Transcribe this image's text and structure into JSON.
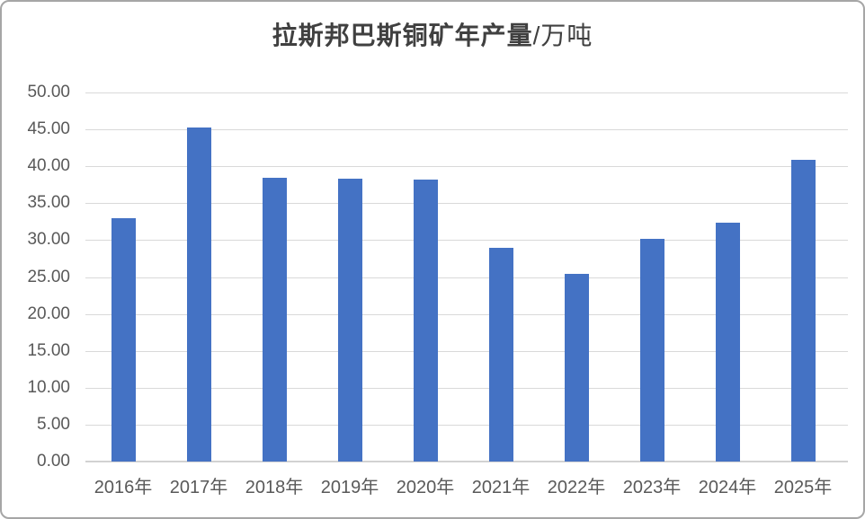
{
  "chart": {
    "title_main": "拉斯邦巴斯铜矿年产量",
    "title_suffix": "/万吨",
    "colors": {
      "bar": "#4472C4",
      "gridline": "#D9D9D9",
      "axis_line": "#D2D2D2",
      "tick_label": "#595959",
      "title": "#404040",
      "frame_border": "#A6A6A6",
      "background": "#FFFFFF"
    }
  },
  "chart_data": {
    "type": "bar",
    "title": "拉斯邦巴斯铜矿年产量/万吨",
    "categories": [
      "2016年",
      "2017年",
      "2018年",
      "2019年",
      "2020年",
      "2021年",
      "2022年",
      "2023年",
      "2024年",
      "2025年"
    ],
    "values": [
      33.0,
      45.3,
      38.5,
      38.3,
      38.2,
      28.9,
      25.4,
      30.2,
      32.3,
      40.9
    ],
    "series_name": "",
    "xlabel": "",
    "ylabel": "",
    "ylim": [
      0,
      50
    ],
    "y_tick_step": 5,
    "y_tick_labels": [
      "0.00",
      "5.00",
      "10.00",
      "15.00",
      "20.00",
      "25.00",
      "30.00",
      "35.00",
      "40.00",
      "45.00",
      "50.00"
    ],
    "grid": true,
    "legend": "none",
    "bar_color": "#4472C4"
  }
}
